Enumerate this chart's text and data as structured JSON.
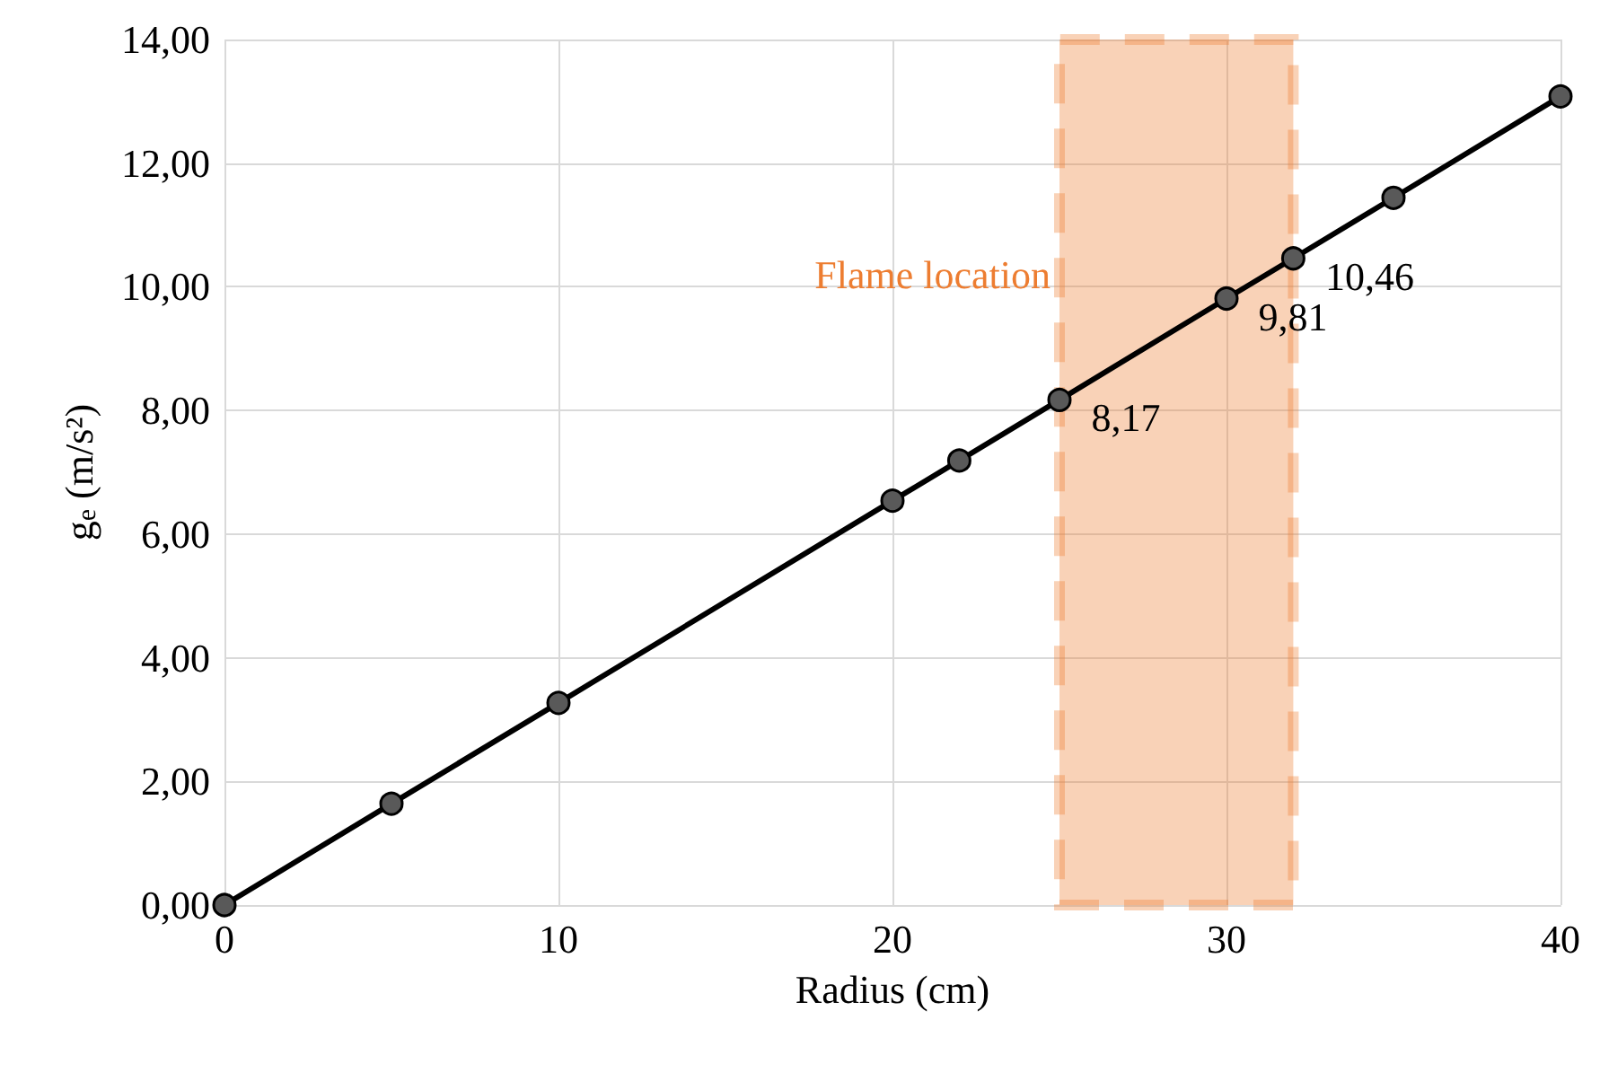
{
  "chart_data": {
    "type": "line",
    "xlabel": "Radius (cm)",
    "ylabel": "g$_{e}$ (m/s²)",
    "x": [
      0,
      5,
      10,
      20,
      22,
      25,
      30,
      32,
      35,
      40
    ],
    "series": [
      {
        "color": "#000000",
        "values": [
          0,
          1.64,
          3.27,
          6.54,
          7.19,
          8.17,
          9.81,
          10.46,
          11.44,
          13.08
        ],
        "value_labels": [
          null,
          null,
          null,
          null,
          null,
          "8,17",
          "9,81",
          "10,46",
          null,
          null
        ]
      }
    ],
    "xlim": [
      0,
      40
    ],
    "xticks": [
      0,
      10,
      20,
      30,
      40
    ],
    "ylim": [
      0,
      14
    ],
    "yticks": [
      {
        "value": 0,
        "label": "0,00"
      },
      {
        "value": 2,
        "label": "2,00"
      },
      {
        "value": 4,
        "label": "4,00"
      },
      {
        "value": 6,
        "label": "6,00"
      },
      {
        "value": 8,
        "label": "8,00"
      },
      {
        "value": 10,
        "label": "10,00"
      },
      {
        "value": 12,
        "label": "12,00"
      },
      {
        "value": 14,
        "label": "14,00"
      }
    ],
    "bands": [
      {
        "axis": "x",
        "from": 25,
        "to": 32,
        "label": "Flame location",
        "color": "#ed7d31"
      }
    ],
    "grid": true,
    "marker": "circle",
    "line_style": "solid"
  }
}
